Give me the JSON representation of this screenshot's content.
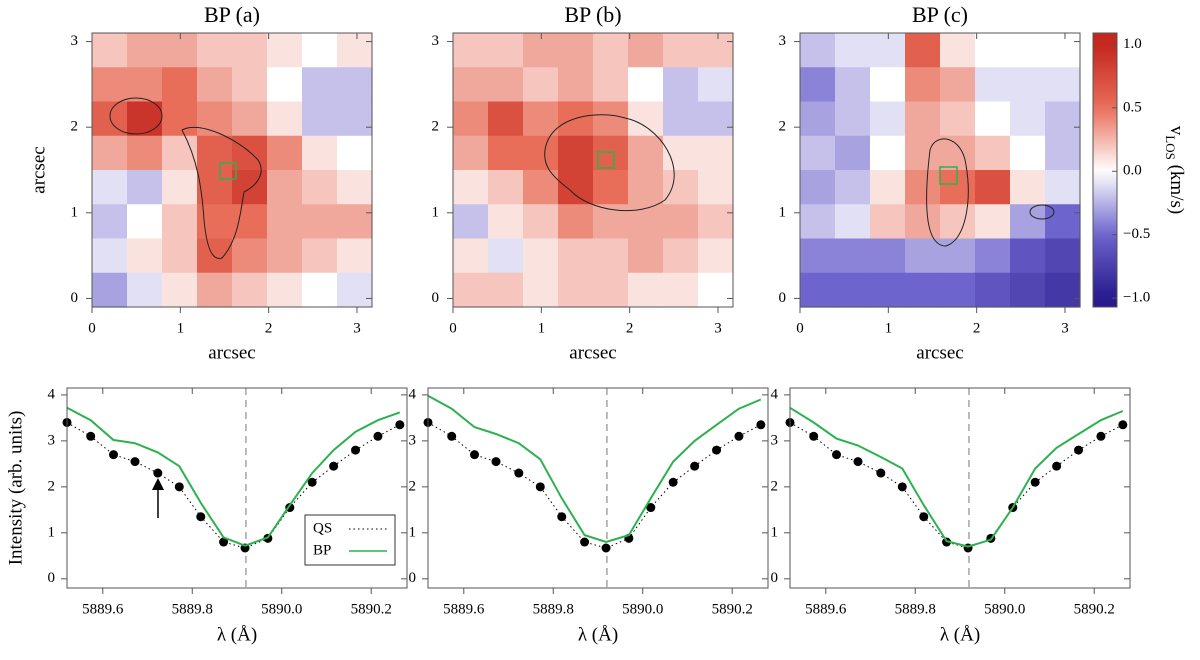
{
  "chart_data": [
    {
      "type": "heatmap",
      "title": "BP (a)",
      "xlabel": "arcsec",
      "ylabel": "arcsec",
      "xlim": [
        0,
        3.17
      ],
      "ylim": [
        -0.1,
        3.1
      ],
      "xticks": [
        0,
        1,
        2,
        3
      ],
      "yticks": [
        0,
        1,
        2,
        3
      ],
      "zlim": [
        -1.07,
        1.09
      ],
      "z": [
        [
          0.2,
          0.3,
          0.3,
          0.2,
          0.2,
          0.1,
          0.0,
          0.1
        ],
        [
          0.4,
          0.4,
          0.5,
          0.3,
          0.2,
          0.0,
          -0.2,
          -0.2
        ],
        [
          0.6,
          0.9,
          0.5,
          0.4,
          0.3,
          0.1,
          -0.2,
          -0.2
        ],
        [
          0.3,
          0.4,
          0.2,
          0.6,
          0.7,
          0.4,
          0.1,
          0.0
        ],
        [
          -0.1,
          -0.2,
          0.1,
          0.6,
          0.8,
          0.3,
          0.2,
          0.1
        ],
        [
          -0.2,
          0.0,
          0.2,
          0.5,
          0.5,
          0.3,
          0.3,
          0.3
        ],
        [
          -0.1,
          0.1,
          0.2,
          0.6,
          0.4,
          0.3,
          0.2,
          0.1
        ],
        [
          -0.3,
          -0.1,
          0.1,
          0.3,
          0.2,
          0.1,
          0.0,
          -0.1
        ]
      ]
    },
    {
      "type": "heatmap",
      "title": "BP (b)",
      "xlabel": "arcsec",
      "xlim": [
        0,
        3.17
      ],
      "ylim": [
        -0.1,
        3.1
      ],
      "xticks": [
        0,
        1,
        2,
        3
      ],
      "yticks": [
        0,
        1,
        2,
        3
      ],
      "zlim": [
        -1.07,
        1.09
      ],
      "z": [
        [
          0.2,
          0.2,
          0.3,
          0.3,
          0.2,
          0.3,
          0.2,
          0.2
        ],
        [
          0.3,
          0.3,
          0.2,
          0.3,
          0.2,
          0.0,
          -0.2,
          -0.1
        ],
        [
          0.4,
          0.7,
          0.4,
          0.5,
          0.4,
          0.1,
          -0.2,
          -0.2
        ],
        [
          0.3,
          0.5,
          0.5,
          0.8,
          0.6,
          0.3,
          0.1,
          0.1
        ],
        [
          0.1,
          0.2,
          0.4,
          0.8,
          0.5,
          0.3,
          0.2,
          0.1
        ],
        [
          -0.2,
          0.1,
          0.2,
          0.4,
          0.3,
          0.3,
          0.3,
          0.2
        ],
        [
          0.1,
          -0.1,
          0.1,
          0.2,
          0.2,
          0.3,
          0.2,
          0.1
        ],
        [
          0.2,
          0.2,
          0.1,
          0.2,
          0.2,
          0.1,
          0.1,
          0.0
        ]
      ]
    },
    {
      "type": "heatmap",
      "title": "BP (c)",
      "xlabel": "arcsec",
      "xlim": [
        0,
        3.17
      ],
      "ylim": [
        -0.1,
        3.1
      ],
      "xticks": [
        0,
        1,
        2,
        3
      ],
      "yticks": [
        0,
        1,
        2,
        3
      ],
      "zlim": [
        -1.07,
        1.09
      ],
      "z": [
        [
          -0.2,
          -0.1,
          -0.1,
          0.6,
          0.1,
          0.0,
          0.0,
          0.0
        ],
        [
          -0.4,
          -0.2,
          0.0,
          0.4,
          0.3,
          -0.1,
          -0.1,
          -0.1
        ],
        [
          -0.3,
          -0.2,
          -0.1,
          0.3,
          0.2,
          0.0,
          -0.1,
          -0.2
        ],
        [
          -0.2,
          -0.3,
          0.0,
          0.3,
          0.3,
          0.2,
          0.0,
          -0.2
        ],
        [
          -0.3,
          -0.2,
          0.1,
          0.4,
          0.5,
          0.7,
          0.1,
          -0.1
        ],
        [
          -0.2,
          -0.1,
          0.2,
          0.3,
          0.2,
          0.1,
          -0.3,
          -0.5
        ],
        [
          -0.4,
          -0.4,
          -0.4,
          -0.3,
          -0.3,
          -0.4,
          -0.6,
          -0.7
        ],
        [
          -0.5,
          -0.5,
          -0.5,
          -0.5,
          -0.5,
          -0.6,
          -0.7,
          -0.8
        ]
      ],
      "colorbar": {
        "label": "v",
        "label_sub": "LOS",
        "label_unit": " (km/s)",
        "ticks": [
          {
            "value": -1,
            "label": "−1.0"
          },
          {
            "value": -0.5,
            "label": "−0.5"
          },
          {
            "value": 0,
            "label": "0.0"
          },
          0.5,
          {
            "value": 1,
            "label": "1.0"
          }
        ]
      }
    },
    {
      "type": "line",
      "xlabel": "λ (Å)",
      "ylabel": "Intensity (arb. units)",
      "xlim": [
        5889.52,
        5890.28
      ],
      "ylim": [
        -0.2,
        4.15
      ],
      "xticks": [
        5889.6,
        5889.8,
        {
          "value": 5890,
          "label": "5890.0"
        },
        5890.2
      ],
      "yticks": [
        0,
        1,
        2,
        3,
        4
      ],
      "vline": 5889.92,
      "legend": "lower right",
      "x": [
        5889.52,
        5889.573,
        5889.624,
        5889.672,
        5889.723,
        5889.771,
        5889.819,
        5889.87,
        5889.918,
        5889.969,
        5890.018,
        5890.068,
        5890.116,
        5890.165,
        5890.215,
        5890.264
      ],
      "series": [
        {
          "name": "QS",
          "color": "#000000",
          "values": [
            3.4,
            3.1,
            2.7,
            2.55,
            2.3,
            2.0,
            1.35,
            0.8,
            0.67,
            0.88,
            1.55,
            2.1,
            2.45,
            2.8,
            3.1,
            3.35
          ]
        },
        {
          "name": "BP",
          "color": "#2db14e",
          "values": [
            3.72,
            3.45,
            3.02,
            2.95,
            2.75,
            2.45,
            1.65,
            0.9,
            0.72,
            0.9,
            1.6,
            2.3,
            2.8,
            3.2,
            3.45,
            3.62
          ]
        }
      ]
    },
    {
      "type": "line",
      "xlabel": "λ (Å)",
      "xlim": [
        5889.52,
        5890.28
      ],
      "ylim": [
        -0.2,
        4.15
      ],
      "xticks": [
        5889.6,
        5889.8,
        {
          "value": 5890,
          "label": "5890.0"
        },
        5890.2
      ],
      "yticks": [
        0,
        1,
        2,
        3,
        4
      ],
      "vline": 5889.92,
      "x": [
        5889.52,
        5889.573,
        5889.624,
        5889.672,
        5889.723,
        5889.771,
        5889.819,
        5889.87,
        5889.918,
        5889.969,
        5890.018,
        5890.068,
        5890.116,
        5890.165,
        5890.215,
        5890.264
      ],
      "series": [
        {
          "name": "QS",
          "color": "#000000",
          "values": [
            3.4,
            3.1,
            2.7,
            2.55,
            2.3,
            2.0,
            1.35,
            0.8,
            0.67,
            0.88,
            1.55,
            2.1,
            2.45,
            2.8,
            3.1,
            3.35
          ]
        },
        {
          "name": "BP",
          "color": "#2db14e",
          "values": [
            3.98,
            3.7,
            3.3,
            3.15,
            2.95,
            2.6,
            1.75,
            0.95,
            0.8,
            0.95,
            1.75,
            2.55,
            3.0,
            3.35,
            3.7,
            3.9
          ]
        }
      ]
    },
    {
      "type": "line",
      "xlabel": "λ (Å)",
      "xlim": [
        5889.52,
        5890.28
      ],
      "ylim": [
        -0.2,
        4.15
      ],
      "xticks": [
        5889.6,
        5889.8,
        {
          "value": 5890,
          "label": "5890.0"
        },
        5890.2
      ],
      "yticks": [
        0,
        1,
        2,
        3,
        4
      ],
      "vline": 5889.92,
      "x": [
        5889.52,
        5889.573,
        5889.624,
        5889.672,
        5889.723,
        5889.771,
        5889.819,
        5889.87,
        5889.918,
        5889.969,
        5890.018,
        5890.068,
        5890.116,
        5890.165,
        5890.215,
        5890.264
      ],
      "series": [
        {
          "name": "QS",
          "color": "#000000",
          "values": [
            3.4,
            3.1,
            2.7,
            2.55,
            2.3,
            2.0,
            1.35,
            0.8,
            0.67,
            0.88,
            1.55,
            2.1,
            2.45,
            2.8,
            3.1,
            3.35
          ]
        },
        {
          "name": "BP",
          "color": "#2db14e",
          "values": [
            3.72,
            3.4,
            3.05,
            2.9,
            2.65,
            2.4,
            1.6,
            0.82,
            0.7,
            0.85,
            1.55,
            2.4,
            2.85,
            3.15,
            3.45,
            3.65
          ]
        }
      ]
    }
  ]
}
